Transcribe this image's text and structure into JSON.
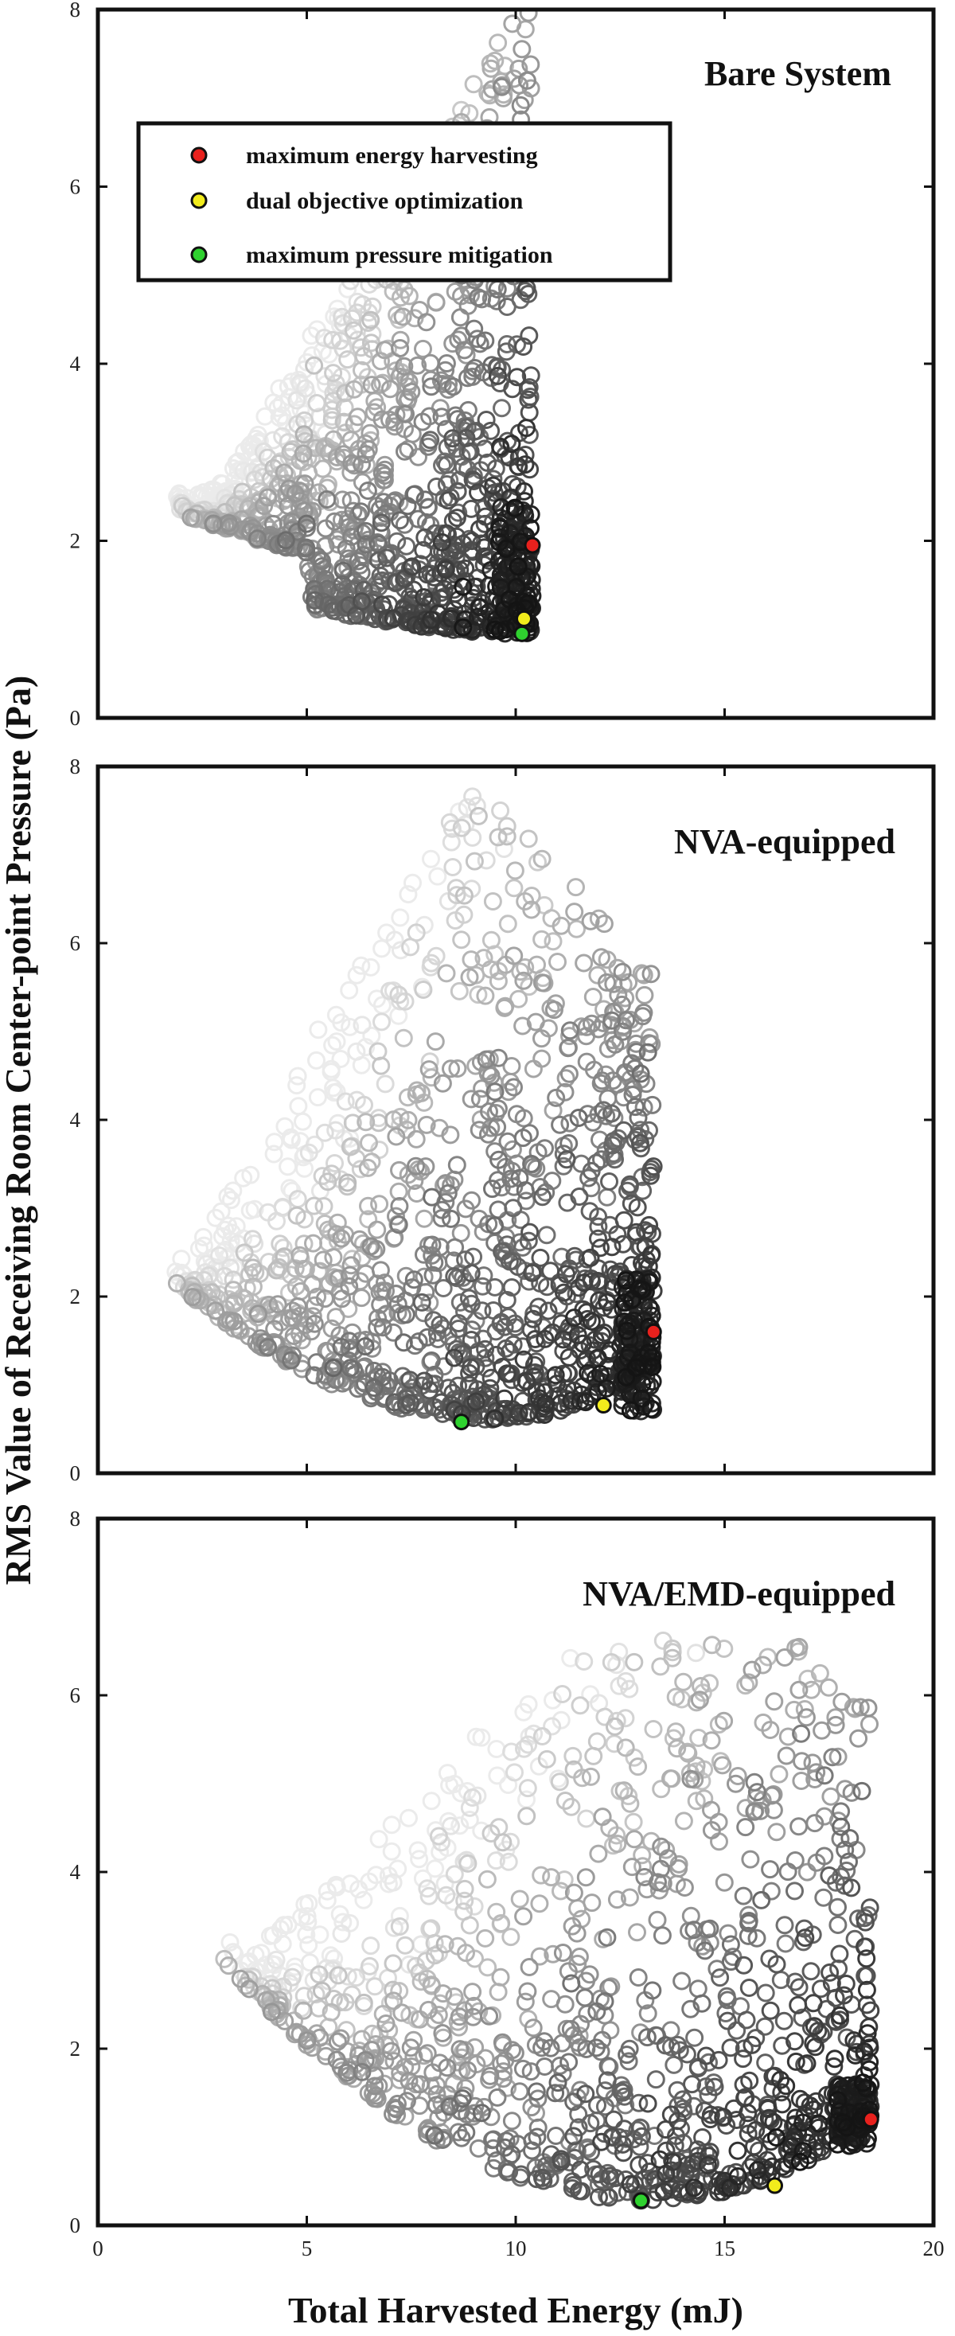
{
  "chart_data": {
    "type": "scatter",
    "xlabel": "Total Harvested Energy (mJ)",
    "ylabel": "RMS Value of Receiving Room Center-point Pressure (Pa)",
    "xlim": [
      0,
      20
    ],
    "ylim": [
      0,
      8
    ],
    "xticks": [
      "0",
      "5",
      "10",
      "15",
      "20"
    ],
    "yticks": [
      "0",
      "2",
      "4",
      "6",
      "8"
    ],
    "grid": false,
    "legend": {
      "placement": "top-left of top panel",
      "entries": [
        {
          "label": "maximum energy harvesting",
          "color": "#e8211d"
        },
        {
          "label": "dual objective optimization",
          "color": "#f2ec1c"
        },
        {
          "label": "maximum pressure mitigation",
          "color": "#2fd12f"
        }
      ]
    },
    "marker_style": "open circles, grayscale (light = far from optimal front, dark = near front)",
    "panels": [
      {
        "title": "Bare System",
        "optimal_points": [
          {
            "label": "maximum energy harvesting",
            "x": 10.4,
            "y": 1.95
          },
          {
            "label": "dual objective optimization",
            "x": 10.2,
            "y": 1.12
          },
          {
            "label": "maximum pressure mitigation",
            "x": 10.15,
            "y": 0.95
          }
        ]
      },
      {
        "title": "NVA-equipped",
        "optimal_points": [
          {
            "label": "maximum energy harvesting",
            "x": 13.3,
            "y": 1.6
          },
          {
            "label": "dual objective optimization",
            "x": 12.1,
            "y": 0.77
          },
          {
            "label": "maximum pressure mitigation",
            "x": 8.7,
            "y": 0.58
          }
        ]
      },
      {
        "title": "NVA/EMD-equipped",
        "optimal_points": [
          {
            "label": "maximum energy harvesting",
            "x": 18.5,
            "y": 1.2
          },
          {
            "label": "dual objective optimization",
            "x": 16.2,
            "y": 0.45
          },
          {
            "label": "maximum pressure mitigation",
            "x": 13.0,
            "y": 0.28
          }
        ]
      }
    ]
  }
}
